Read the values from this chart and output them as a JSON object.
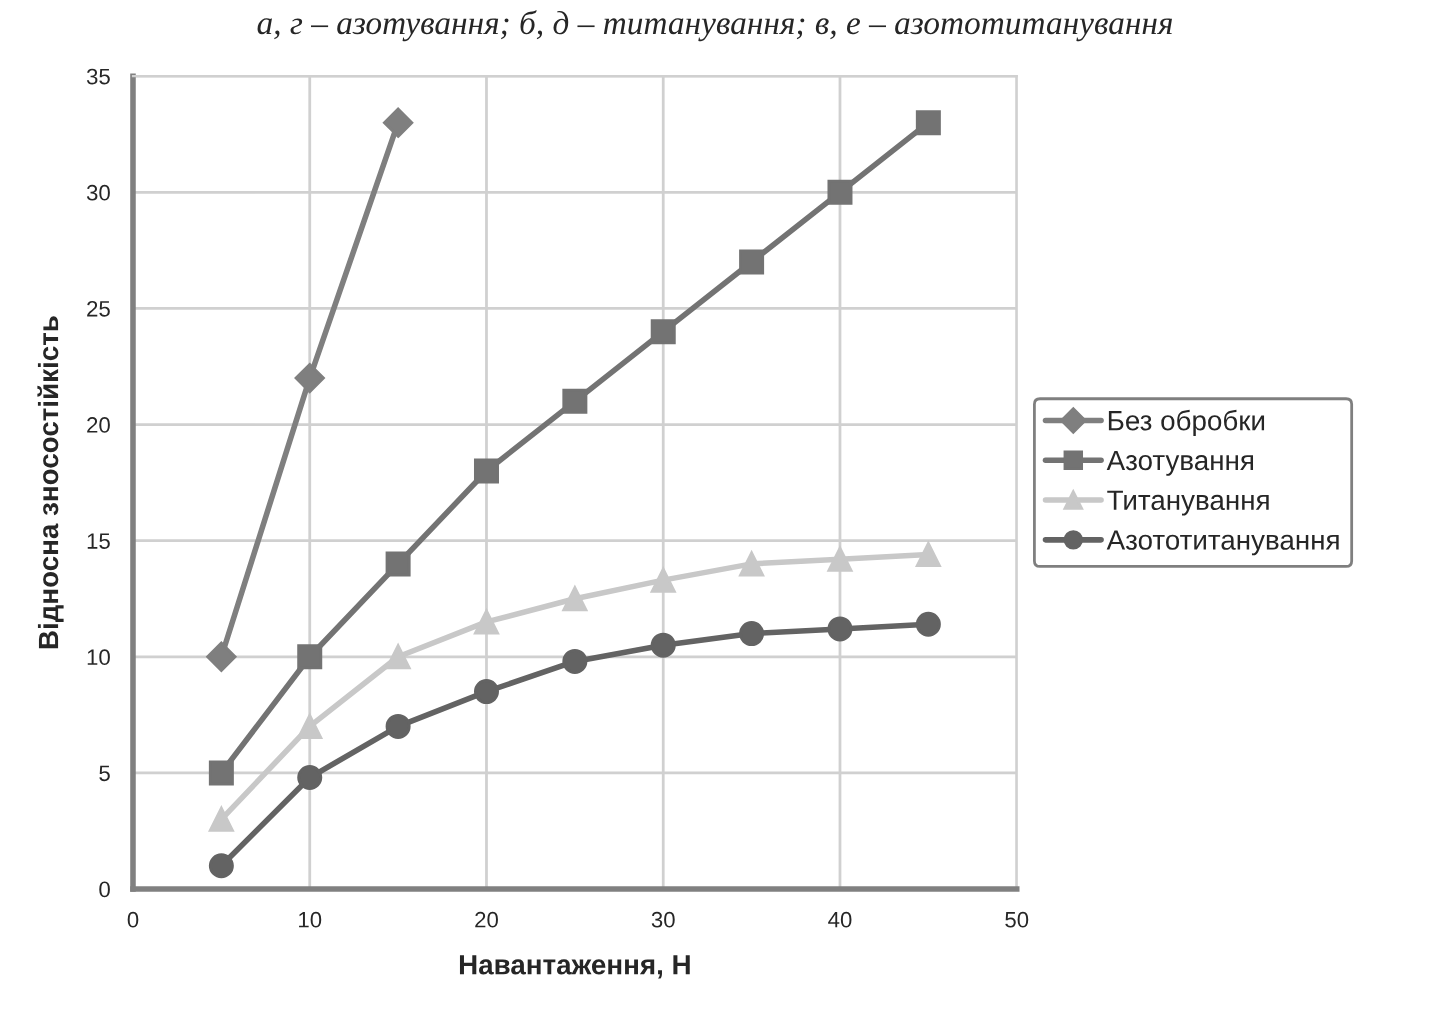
{
  "chart_data": {
    "type": "line",
    "xlabel": "Навантаження, Н",
    "ylabel": "Відносна зносостійкість",
    "annotations": [
      "а, г – азотування; б, д – титанування; в, е – азототитанування"
    ],
    "series": [
      {
        "name": "Без обробки",
        "color": "#7f7f7f",
        "marker": "diamond",
        "x": [
          5,
          10,
          15
        ],
        "values": [
          10,
          22,
          33
        ]
      },
      {
        "name": "Азотування",
        "color": "#737373",
        "marker": "square",
        "x": [
          5,
          10,
          15,
          20,
          25,
          30,
          35,
          40,
          45
        ],
        "values": [
          5,
          10,
          14,
          18,
          21,
          24,
          27,
          30,
          33
        ]
      },
      {
        "name": "Титанування",
        "color": "#c8c8c8",
        "marker": "triangle",
        "x": [
          5,
          10,
          15,
          20,
          25,
          30,
          35,
          40,
          45
        ],
        "values": [
          3,
          7,
          10,
          11.5,
          12.5,
          13.3,
          14,
          14.2,
          14.4
        ]
      },
      {
        "name": "Азототитанування",
        "color": "#636363",
        "marker": "circle",
        "x": [
          5,
          10,
          15,
          20,
          25,
          30,
          35,
          40,
          45
        ],
        "values": [
          1,
          4.8,
          7,
          8.5,
          9.8,
          10.5,
          11,
          11.2,
          11.4
        ]
      }
    ],
    "xlim": [
      0,
      50
    ],
    "xticks": [
      0,
      10,
      20,
      30,
      40,
      50
    ],
    "ylim": [
      0,
      35
    ],
    "yticks": [
      0,
      5,
      10,
      15,
      20,
      25,
      30,
      35
    ],
    "grid": true,
    "legend": "right",
    "line_style": "solid"
  }
}
